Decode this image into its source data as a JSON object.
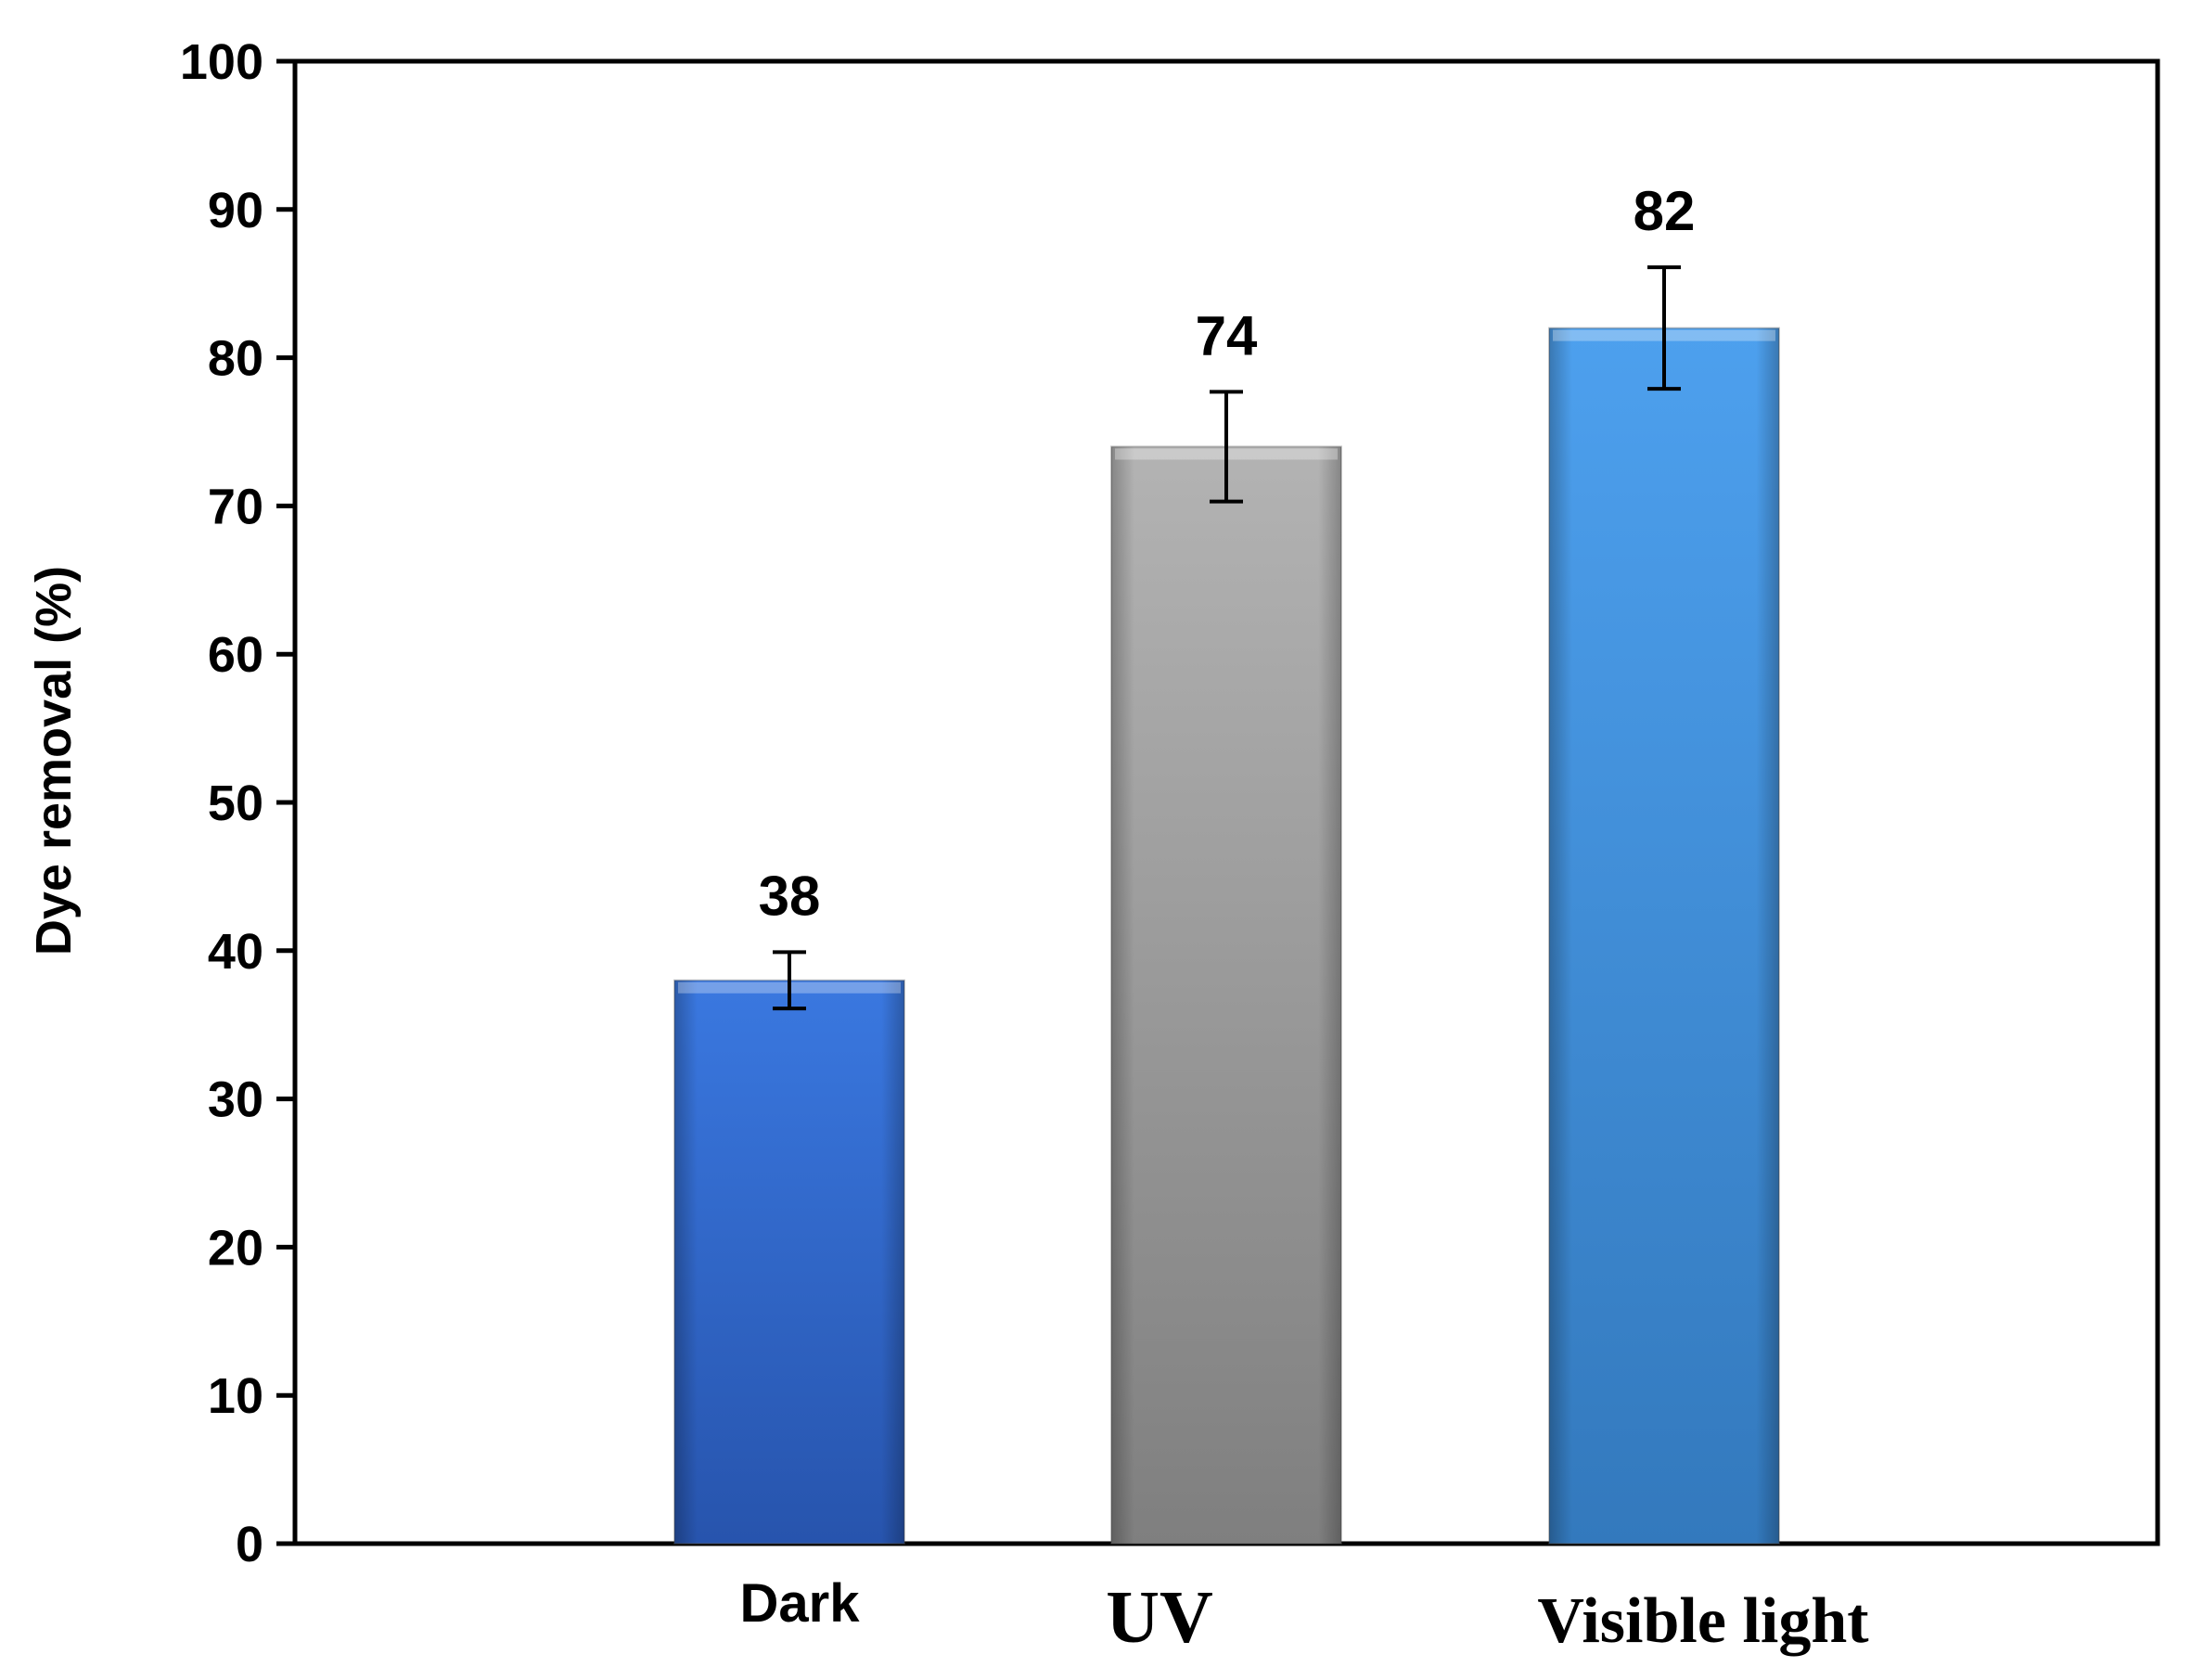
{
  "chart_data": {
    "type": "bar",
    "title": "",
    "xlabel": "",
    "ylabel": "Dye removal (%)",
    "ylim": [
      0,
      100
    ],
    "yticks": [
      "0",
      "10",
      "20",
      "30",
      "40",
      "50",
      "60",
      "70",
      "80",
      "90",
      "100"
    ],
    "grid": false,
    "categories": [
      "Dark",
      "UV",
      "Visible light"
    ],
    "values": [
      38,
      74,
      82
    ],
    "value_labels": [
      "38",
      "74",
      "82"
    ],
    "error_bars": [
      {
        "low": 36.1,
        "high": 39.9
      },
      {
        "low": 70.3,
        "high": 77.7
      },
      {
        "low": 77.9,
        "high": 86.1
      }
    ],
    "colors": {
      "Dark": "#2f66d0",
      "UV": "#999999",
      "Visible light": "#4190d6",
      "axis": "#000000",
      "text": "#000000"
    }
  }
}
